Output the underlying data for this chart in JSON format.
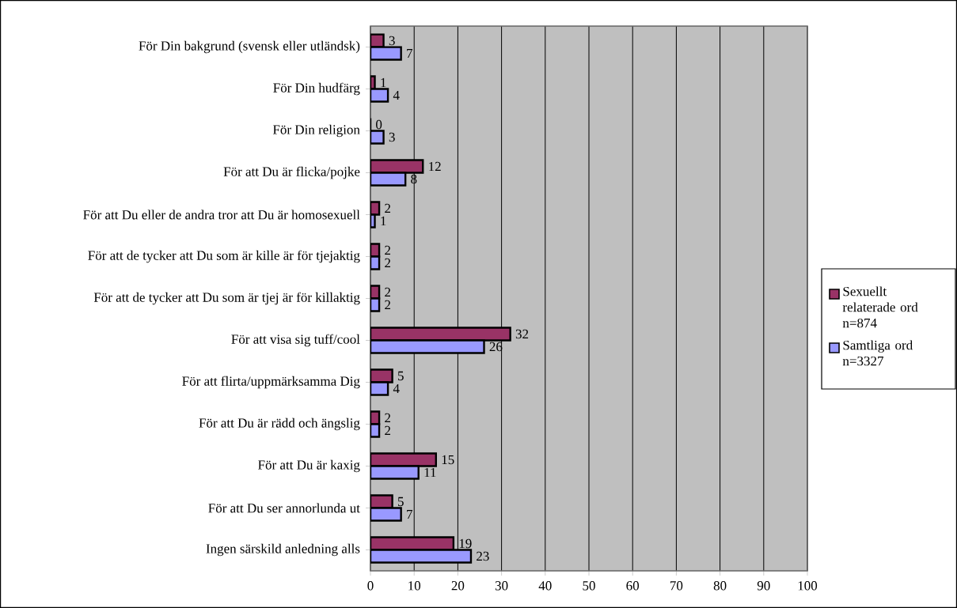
{
  "chart_data": {
    "type": "bar",
    "orientation": "horizontal",
    "categories": [
      "För Din bakgrund (svensk eller utländsk)",
      "För Din hudfärg",
      "För Din religion",
      "För att Du är flicka/pojke",
      "För att Du eller de andra tror att Du är homosexuell",
      "För att de tycker att Du som är kille är för tjejaktig",
      "För att de tycker att Du som är tjej är för killaktig",
      "För att visa sig tuff/cool",
      "För att flirta/uppmärksamma Dig",
      "För att Du är rädd och ängslig",
      "För att Du är kaxig",
      "För att Du ser annorlunda ut",
      "Ingen särskild anledning alls"
    ],
    "series": [
      {
        "name": "Sexuellt relaterade ord n=874",
        "color": "#993366",
        "values": [
          3,
          1,
          0,
          12,
          2,
          2,
          2,
          32,
          5,
          2,
          15,
          5,
          19
        ]
      },
      {
        "name": "Samtliga ord n=3327",
        "color": "#9999ff",
        "values": [
          7,
          4,
          3,
          8,
          1,
          2,
          2,
          26,
          4,
          2,
          11,
          7,
          23
        ]
      }
    ],
    "xlim": [
      0,
      100
    ],
    "xticks": [
      0,
      10,
      20,
      30,
      40,
      50,
      60,
      70,
      80,
      90,
      100
    ],
    "grid": "x",
    "legend": "right",
    "data_labels": true
  }
}
